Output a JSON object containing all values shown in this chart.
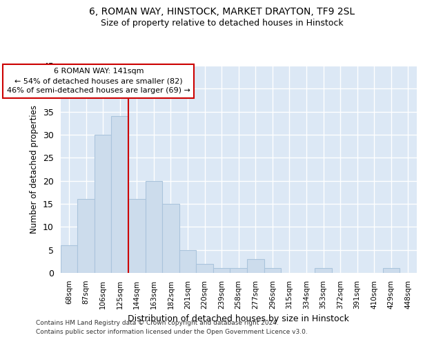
{
  "title_line1": "6, ROMAN WAY, HINSTOCK, MARKET DRAYTON, TF9 2SL",
  "title_line2": "Size of property relative to detached houses in Hinstock",
  "xlabel": "Distribution of detached houses by size in Hinstock",
  "ylabel": "Number of detached properties",
  "bar_labels": [
    "68sqm",
    "87sqm",
    "106sqm",
    "125sqm",
    "144sqm",
    "163sqm",
    "182sqm",
    "201sqm",
    "220sqm",
    "239sqm",
    "258sqm",
    "277sqm",
    "296sqm",
    "315sqm",
    "334sqm",
    "353sqm",
    "372sqm",
    "391sqm",
    "410sqm",
    "429sqm",
    "448sqm"
  ],
  "bar_values": [
    6,
    16,
    30,
    34,
    16,
    20,
    15,
    5,
    2,
    1,
    1,
    3,
    1,
    0,
    0,
    1,
    0,
    0,
    0,
    1,
    0
  ],
  "bar_color": "#ccdcec",
  "bar_edge_color": "#aac4dc",
  "background_color": "#dce8f5",
  "ylim": [
    0,
    45
  ],
  "yticks": [
    0,
    5,
    10,
    15,
    20,
    25,
    30,
    35,
    40,
    45
  ],
  "vline_x": 3.5,
  "vline_color": "#cc0000",
  "marker_label_line1": "6 ROMAN WAY: 141sqm",
  "marker_label_line2": "← 54% of detached houses are smaller (82)",
  "marker_label_line3": "46% of semi-detached houses are larger (69) →",
  "annotation_box_edge_color": "#cc0000",
  "annotation_box_face_color": "#ffffff",
  "footer_line1": "Contains HM Land Registry data © Crown copyright and database right 2024.",
  "footer_line2": "Contains public sector information licensed under the Open Government Licence v3.0."
}
